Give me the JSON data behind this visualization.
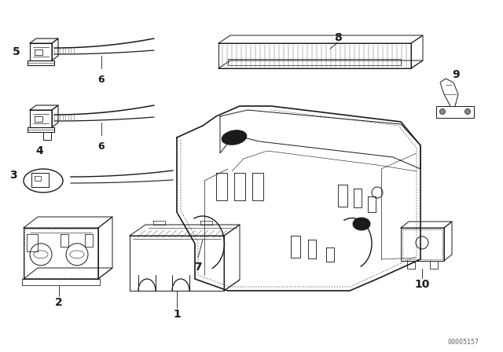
{
  "background_color": "#ffffff",
  "line_color": "#1a1a1a",
  "figure_width": 6.4,
  "figure_height": 4.48,
  "dpi": 100,
  "watermark": "00005157"
}
